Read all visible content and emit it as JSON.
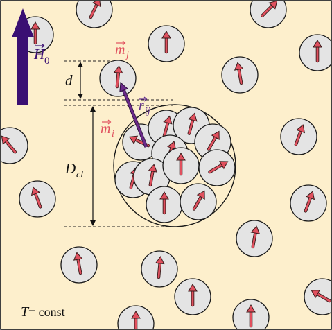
{
  "colors": {
    "background": "#fdefcc",
    "frame": "#000000",
    "particle_fill": "#e4e4e4",
    "particle_stroke": "#1a1a1a",
    "moment_arrow": "#e0505e",
    "field_arrow": "#3a0f73",
    "rij_arrow": "#6b2a8a",
    "moment_label": "#e0505e",
    "field_label": "#3a0f73",
    "rij_label": "#5e2a8a"
  },
  "labels": {
    "field": "H",
    "field_subscript": "0",
    "moment_j": "m",
    "moment_j_subscript": "j",
    "moment_i": "m",
    "moment_i_subscript": "i",
    "separation": "r",
    "separation_subscript": "ij",
    "distance_d": "d",
    "cluster_diameter": "D",
    "cluster_diameter_subscript": "cl",
    "temperature": "T",
    "temperature_value": " = const"
  },
  "icons": {
    "field": "field-arrow-icon",
    "moment": "magnetic-moment-arrow-icon"
  }
}
